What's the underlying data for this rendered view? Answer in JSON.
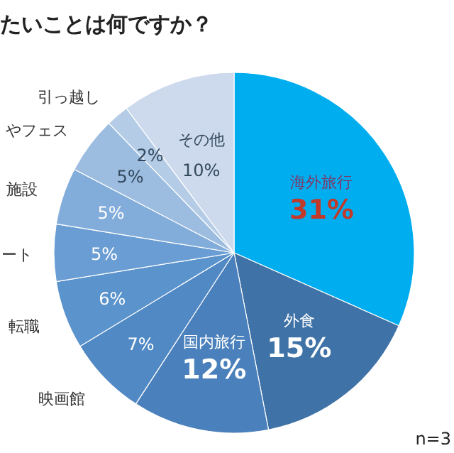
{
  "chart_data": {
    "type": "pie",
    "title": "たいことは何ですか？",
    "categories": [
      "海外旅行",
      "外食",
      "国内旅行",
      "映画館",
      "転職",
      "ート",
      "施設",
      "やフェス",
      "引っ越し",
      "その他"
    ],
    "values": [
      31,
      15,
      12,
      7,
      6,
      5,
      5,
      5,
      2,
      10
    ],
    "colors": [
      "#00aeef",
      "#3f72a6",
      "#4a80bb",
      "#5089c4",
      "#5b93cc",
      "#6a9dd3",
      "#82acd9",
      "#9cbde0",
      "#b4cce6",
      "#cdd9ec"
    ],
    "value_labels": [
      "31%",
      "15%",
      "12%",
      "7%",
      "6%",
      "5%",
      "5%",
      "5%",
      "2%",
      "10%"
    ],
    "annotations": [
      "n=3"
    ]
  }
}
